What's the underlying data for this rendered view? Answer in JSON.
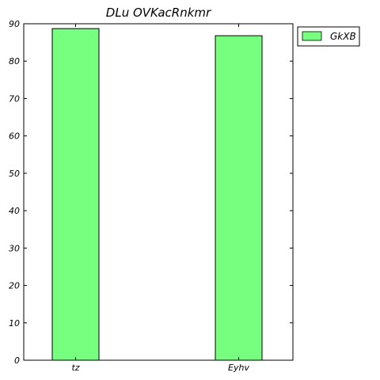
{
  "chart_data": {
    "type": "bar",
    "title": "DLu OVKacRnkmr",
    "xlabel": "",
    "ylabel": "",
    "categories": [
      "tz",
      "Eyhv"
    ],
    "series": [
      {
        "name": "GkXB",
        "values": [
          88.7,
          86.8
        ],
        "color": "#77ff80"
      }
    ],
    "ylim": [
      0,
      90
    ],
    "yticks": [
      0,
      10,
      20,
      30,
      40,
      50,
      60,
      70,
      80,
      90
    ],
    "grid": false,
    "legend_position": "outside-top-right"
  },
  "colors": {
    "bar_fill": "#77ff80",
    "bar_edge": "#000000",
    "axis": "#000000",
    "background": "#ffffff"
  }
}
